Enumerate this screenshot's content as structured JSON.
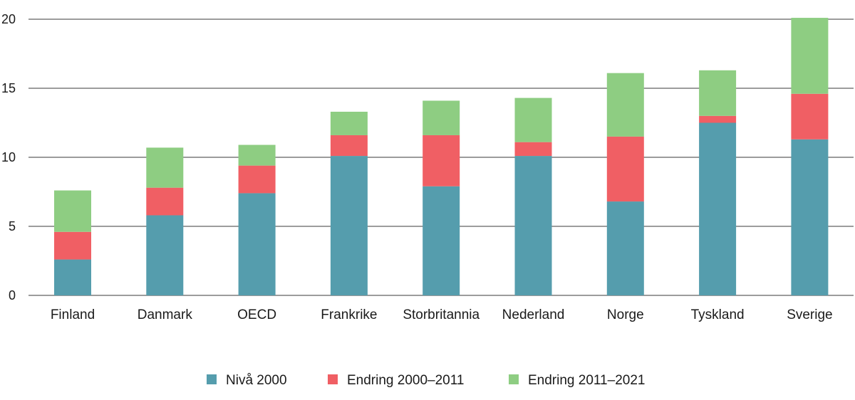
{
  "chart_data": {
    "type": "bar",
    "stacked": true,
    "categories": [
      "Finland",
      "Danmark",
      "OECD",
      "Frankrike",
      "Storbritannia",
      "Nederland",
      "Norge",
      "Tyskland",
      "Sverige"
    ],
    "series": [
      {
        "name": "Nivå 2000",
        "color": "#559DAD",
        "values": [
          2.6,
          5.8,
          7.4,
          10.1,
          7.9,
          10.1,
          6.8,
          12.5,
          11.3
        ]
      },
      {
        "name": "Endring 2000–2011",
        "color": "#F05F64",
        "values": [
          2.0,
          2.0,
          2.0,
          1.5,
          3.7,
          1.0,
          4.7,
          0.5,
          3.3
        ]
      },
      {
        "name": "Endring 2011–2021",
        "color": "#8ECD82",
        "values": [
          3.0,
          2.9,
          1.5,
          1.7,
          2.5,
          3.2,
          4.6,
          3.3,
          5.5
        ]
      }
    ],
    "yticks": [
      0,
      5,
      10,
      15,
      20
    ],
    "ylim": [
      0,
      20
    ],
    "grid": true,
    "legend_position": "bottom-center"
  }
}
